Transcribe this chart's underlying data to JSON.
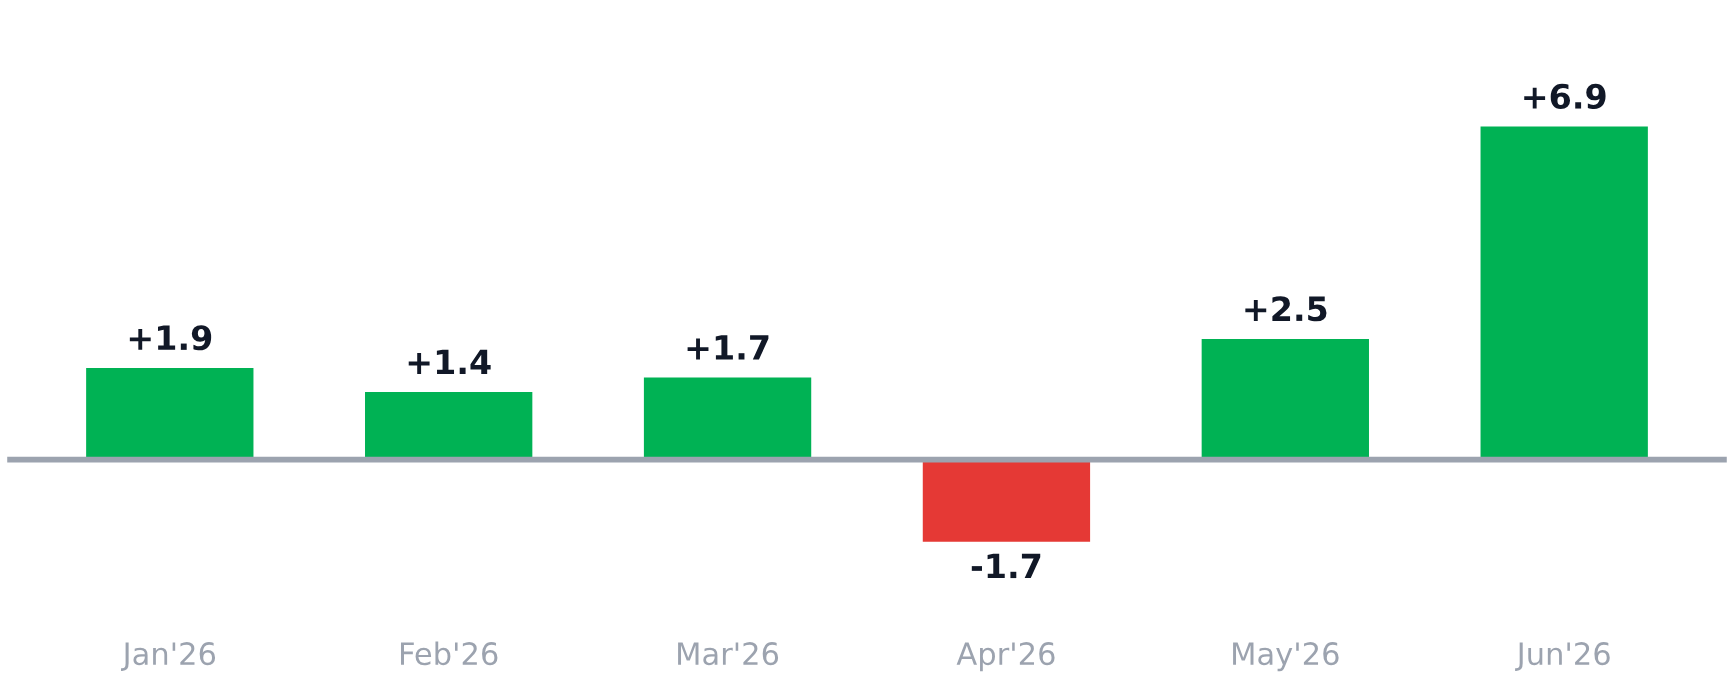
{
  "chart_data": {
    "type": "bar",
    "categories": [
      "Jan'26",
      "Feb'26",
      "Mar'26",
      "Apr'26",
      "May'26",
      "Jun'26"
    ],
    "values": [
      1.9,
      1.4,
      1.7,
      -1.7,
      2.5,
      6.9
    ],
    "colors": [
      "#00b254",
      "#00b254",
      "#00b254",
      "#e53935",
      "#00b254",
      "#00b254"
    ],
    "value_labels": [
      "+1.9",
      "+1.4",
      "+1.7",
      "-1.7",
      "+2.5",
      "+6.9"
    ],
    "grid": false,
    "legend": false
  }
}
